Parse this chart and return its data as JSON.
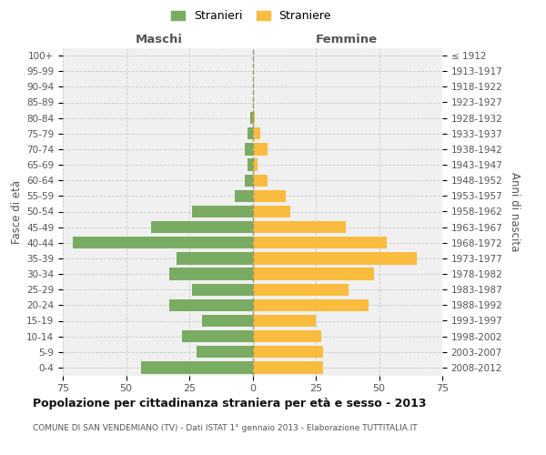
{
  "age_groups": [
    "0-4",
    "5-9",
    "10-14",
    "15-19",
    "20-24",
    "25-29",
    "30-34",
    "35-39",
    "40-44",
    "45-49",
    "50-54",
    "55-59",
    "60-64",
    "65-69",
    "70-74",
    "75-79",
    "80-84",
    "85-89",
    "90-94",
    "95-99",
    "100+"
  ],
  "birth_years": [
    "2008-2012",
    "2003-2007",
    "1998-2002",
    "1993-1997",
    "1988-1992",
    "1983-1987",
    "1978-1982",
    "1973-1977",
    "1968-1972",
    "1963-1967",
    "1958-1962",
    "1953-1957",
    "1948-1952",
    "1943-1947",
    "1938-1942",
    "1933-1937",
    "1928-1932",
    "1923-1927",
    "1918-1922",
    "1913-1917",
    "≤ 1912"
  ],
  "males": [
    44,
    22,
    28,
    20,
    33,
    24,
    33,
    30,
    71,
    40,
    24,
    7,
    3,
    2,
    3,
    2,
    1,
    0,
    0,
    0,
    0
  ],
  "females": [
    28,
    28,
    27,
    25,
    46,
    38,
    48,
    65,
    53,
    37,
    15,
    13,
    6,
    2,
    6,
    3,
    1,
    0,
    0,
    0,
    0
  ],
  "male_color": "#7aab62",
  "female_color": "#f9bc3e",
  "background_color": "#f0f0f0",
  "grid_color": "#cccccc",
  "title": "Popolazione per cittadinanza straniera per età e sesso - 2013",
  "subtitle": "COMUNE DI SAN VENDEMIANO (TV) - Dati ISTAT 1° gennaio 2013 - Elaborazione TUTTITALIA.IT",
  "xlabel_left": "Maschi",
  "xlabel_right": "Femmine",
  "ylabel_left": "Fasce di età",
  "ylabel_right": "Anni di nascita",
  "legend_males": "Stranieri",
  "legend_females": "Straniere",
  "xlim": 75,
  "dashed_line_color": "#999966"
}
